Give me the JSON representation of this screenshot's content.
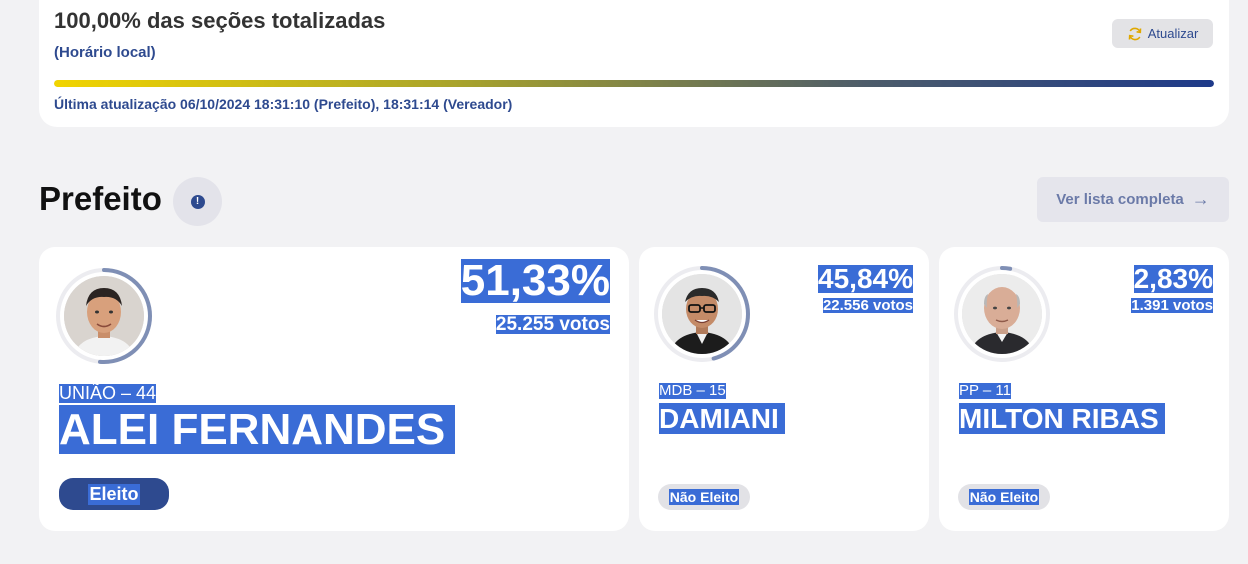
{
  "status": {
    "title": "100,00% das seções totalizadas",
    "subtitle": "(Horário local)",
    "refresh_label": "Atualizar",
    "progress": 1.0,
    "last_update": "Última atualização 06/10/2024 18:31:10 (Prefeito), 18:31:14 (Vereador)"
  },
  "section": {
    "title": "Prefeito",
    "info_symbol": "!",
    "list_label": "Ver lista completa",
    "list_arrow": "→"
  },
  "candidates": [
    {
      "pct": "51,33%",
      "votes": "25.255 votos",
      "party": "UNIÃO – 44",
      "name": "ALEI FERNANDES",
      "status": "Eleito",
      "share": 0.5133
    },
    {
      "pct": "45,84%",
      "votes": "22.556 votos",
      "party": "MDB – 15",
      "name": "DAMIANI",
      "status": "Não Eleito",
      "share": 0.4584
    },
    {
      "pct": "2,83%",
      "votes": "1.391 votos",
      "party": "PP – 11",
      "name": "MILTON RIBAS",
      "status": "Não Eleito",
      "share": 0.0283
    }
  ],
  "colors": {
    "accent": "#2e4a8f",
    "selection": "#3a6cd6",
    "ring": "#7f8fb5"
  }
}
